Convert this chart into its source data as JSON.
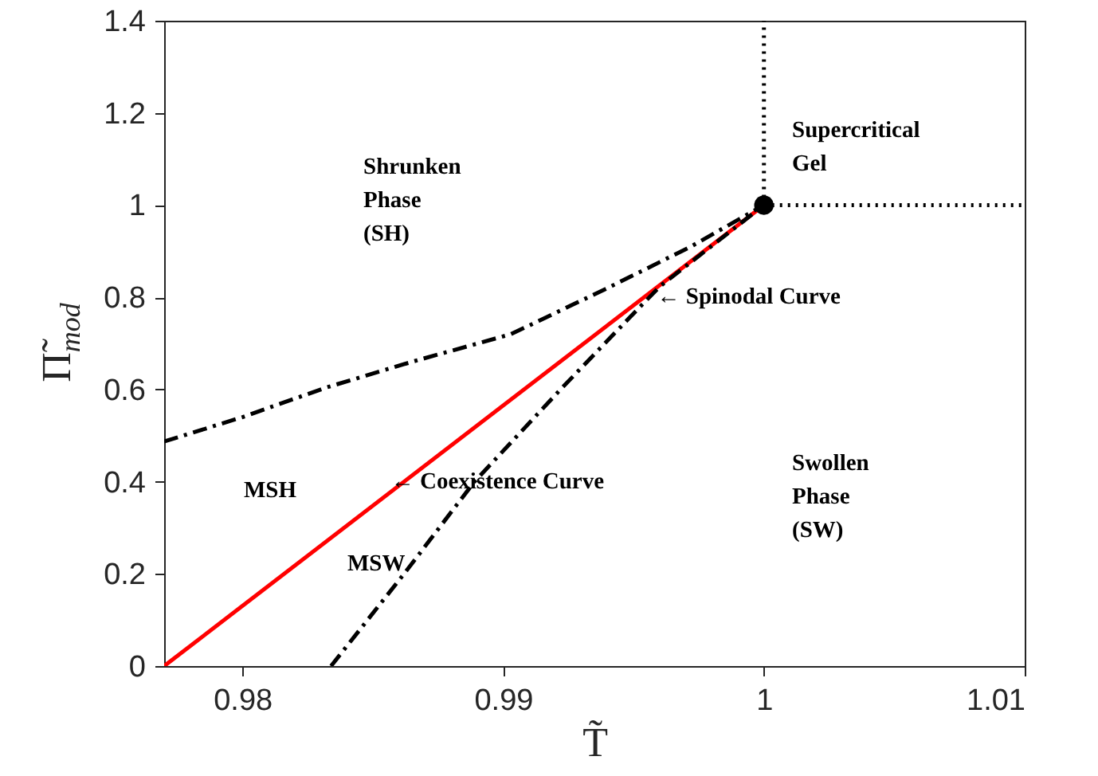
{
  "chart_data": {
    "type": "line",
    "xlabel": "T̃",
    "ylabel": "Π̃$_{mod}$",
    "xlim": [
      0.977,
      1.01
    ],
    "ylim": [
      0,
      1.4
    ],
    "xticks": [
      0.98,
      0.99,
      1,
      1.01
    ],
    "yticks": [
      0,
      0.2,
      0.4,
      0.6,
      0.8,
      1,
      1.2,
      1.4
    ],
    "grid": false,
    "series": [
      {
        "color": "#ff0000",
        "line_style": "solid",
        "x": [
          0.977,
          1
        ],
        "values": [
          0,
          1
        ]
      },
      {
        "color": "#000000",
        "line_style": "dashed",
        "x": [
          0.977,
          0.98,
          0.9832,
          0.9865,
          0.9903,
          0.994,
          0.9972,
          1
        ],
        "values": [
          0.487,
          0.54,
          0.604,
          0.66,
          0.72,
          0.82,
          0.91,
          1
        ]
      },
      {
        "color": "#000000",
        "line_style": "dashed",
        "x": [
          0.9834,
          0.9862,
          0.9889,
          0.9922,
          0.9948,
          0.996,
          1
        ],
        "values": [
          0,
          0.2,
          0.4,
          0.6,
          0.753,
          0.823,
          1
        ]
      },
      {
        "color": "#000000",
        "line_style": "dotted",
        "x": [
          1,
          1
        ],
        "values": [
          1,
          1.4
        ]
      },
      {
        "color": "#000000",
        "line_style": "dotted",
        "x": [
          1,
          1.01
        ],
        "values": [
          1,
          1
        ]
      },
      {
        "type": "scatter",
        "marker": "circle",
        "color": "#000000",
        "x": [
          1
        ],
        "values": [
          1
        ]
      }
    ],
    "annotations": [
      "Supercritical\nGel",
      "Shrunken\nPhase\n(SH)",
      "MSH",
      "MSW",
      "Swollen\nPhase\n(SW)",
      {
        "text": "← Coexistence Curve",
        "x": 0.9857,
        "y": 0.4
      },
      {
        "text": "← Spinodal Curve",
        "x": 0.9959,
        "y": 0.8
      }
    ]
  }
}
